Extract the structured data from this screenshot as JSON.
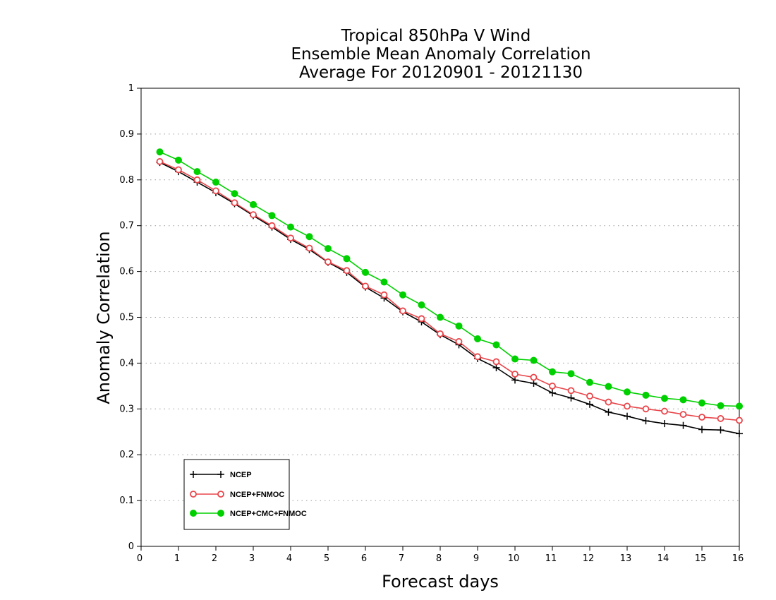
{
  "chart_data": {
    "type": "line",
    "title": [
      "Tropical 850hPa V Wind",
      "Ensemble Mean Anomaly Correlation",
      "Average For 20120901 - 20121130"
    ],
    "xlabel": "Forecast days",
    "ylabel": "Anomaly Correlation",
    "xlim": [
      0,
      16
    ],
    "ylim": [
      0,
      1
    ],
    "xticks": [
      "0",
      "1",
      "2",
      "3",
      "4",
      "5",
      "6",
      "7",
      "8",
      "9",
      "10",
      "11",
      "12",
      "13",
      "14",
      "15",
      "16"
    ],
    "yticks": [
      "0",
      "0.1",
      "0.2",
      "0.3",
      "0.4",
      "0.5",
      "0.6",
      "0.7",
      "0.8",
      "0.9",
      "1"
    ],
    "grid": "horizontal dotted",
    "legend_position": "bottom-left",
    "x": [
      0.5,
      1,
      1.5,
      2,
      2.5,
      3,
      3.5,
      4,
      4.5,
      5,
      5.5,
      6,
      6.5,
      7,
      7.5,
      8,
      8.5,
      9,
      9.5,
      10,
      10.5,
      11,
      11.5,
      12,
      12.5,
      13,
      13.5,
      14,
      14.5,
      15,
      15.5,
      16
    ],
    "series": [
      {
        "name": "NCEP",
        "color": "#000000",
        "marker": "plus",
        "values": [
          0.838,
          0.818,
          0.795,
          0.772,
          0.748,
          0.722,
          0.697,
          0.67,
          0.648,
          0.62,
          0.598,
          0.566,
          0.542,
          0.512,
          0.49,
          0.462,
          0.44,
          0.41,
          0.39,
          0.363,
          0.356,
          0.335,
          0.324,
          0.31,
          0.293,
          0.284,
          0.274,
          0.268,
          0.264,
          0.255,
          0.254,
          0.246
        ]
      },
      {
        "name": "NCEP+FNMOC",
        "color": "#e8454a",
        "marker": "open-circle",
        "values": [
          0.84,
          0.822,
          0.8,
          0.776,
          0.75,
          0.724,
          0.7,
          0.673,
          0.651,
          0.621,
          0.602,
          0.568,
          0.549,
          0.514,
          0.497,
          0.464,
          0.447,
          0.414,
          0.403,
          0.376,
          0.369,
          0.35,
          0.34,
          0.328,
          0.315,
          0.306,
          0.3,
          0.295,
          0.288,
          0.282,
          0.279,
          0.275
        ]
      },
      {
        "name": "NCEP+CMC+FNMOC",
        "color": "#00d000",
        "marker": "filled-circle",
        "values": [
          0.861,
          0.843,
          0.818,
          0.795,
          0.77,
          0.746,
          0.722,
          0.697,
          0.676,
          0.65,
          0.628,
          0.598,
          0.577,
          0.549,
          0.527,
          0.5,
          0.481,
          0.453,
          0.44,
          0.409,
          0.406,
          0.381,
          0.377,
          0.358,
          0.349,
          0.337,
          0.33,
          0.323,
          0.32,
          0.313,
          0.307,
          0.306
        ]
      }
    ]
  }
}
